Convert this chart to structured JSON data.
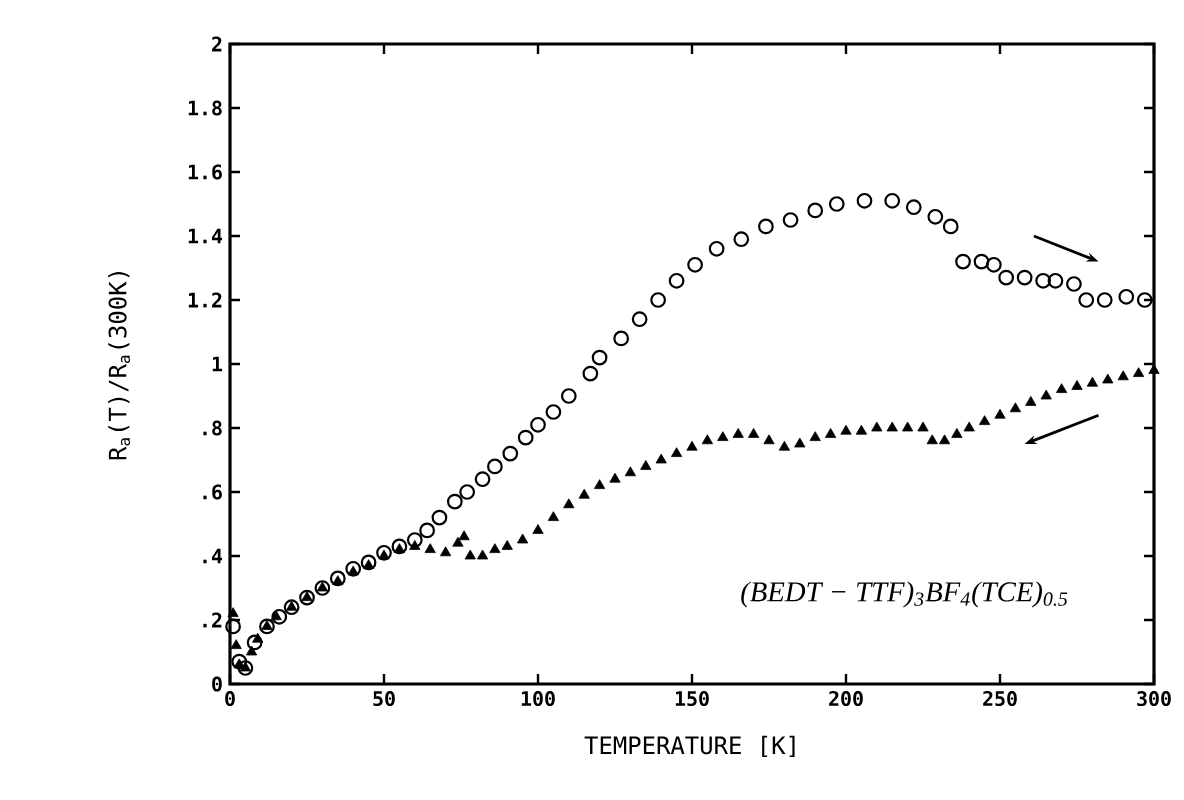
{
  "chart_data": {
    "type": "scatter",
    "xlabel": "TEMPERATURE [K]",
    "ylabel": "R$_{a}$(T)/R$_{a}$(300K)",
    "annotations": [
      "(BEDT − TTF)$_{3}$BF$_{4}$(TCE)$_{0.5}$"
    ],
    "xlim": [
      0,
      300
    ],
    "xticks": [
      0,
      50,
      100,
      150,
      200,
      250,
      300
    ],
    "ylim": [
      0,
      2
    ],
    "yticks": [
      0,
      {
        "value": 0.2,
        "label": ".2"
      },
      {
        "value": 0.4,
        "label": ".4"
      },
      {
        "value": 0.6,
        "label": ".6"
      },
      {
        "value": 0.8,
        "label": ".8"
      },
      1,
      1.2,
      1.4,
      1.6,
      1.8,
      2
    ],
    "grid": false,
    "series": [
      {
        "color": "#000000",
        "marker": "circle",
        "x": [
          1,
          3,
          5,
          8,
          12,
          16,
          20,
          25,
          30,
          35,
          40,
          45,
          50,
          55,
          60,
          64,
          68,
          73,
          77,
          82,
          86,
          91,
          96,
          100,
          105,
          110,
          117,
          120,
          127,
          133,
          139,
          145,
          151,
          158,
          166,
          174,
          182,
          190,
          197,
          206,
          215,
          222,
          229,
          234,
          238,
          244,
          248,
          252,
          258,
          264,
          268,
          274,
          278,
          284,
          291,
          297
        ],
        "values": [
          0.18,
          0.07,
          0.05,
          0.13,
          0.18,
          0.21,
          0.24,
          0.27,
          0.3,
          0.33,
          0.36,
          0.38,
          0.41,
          0.43,
          0.45,
          0.48,
          0.52,
          0.57,
          0.6,
          0.64,
          0.68,
          0.72,
          0.77,
          0.81,
          0.85,
          0.9,
          0.97,
          1.02,
          1.08,
          1.14,
          1.2,
          1.26,
          1.31,
          1.36,
          1.39,
          1.43,
          1.45,
          1.48,
          1.5,
          1.51,
          1.51,
          1.49,
          1.46,
          1.43,
          1.32,
          1.32,
          1.31,
          1.27,
          1.27,
          1.26,
          1.26,
          1.25,
          1.2,
          1.2,
          1.21,
          1.2
        ]
      },
      {
        "color": "#000000",
        "marker": "triangle",
        "x": [
          1,
          2,
          3,
          5,
          7,
          9,
          12,
          15,
          20,
          25,
          30,
          35,
          40,
          45,
          50,
          55,
          60,
          65,
          70,
          74,
          76,
          78,
          82,
          86,
          90,
          95,
          100,
          105,
          110,
          115,
          120,
          125,
          130,
          135,
          140,
          145,
          150,
          155,
          160,
          165,
          170,
          175,
          180,
          185,
          190,
          195,
          200,
          205,
          210,
          215,
          220,
          225,
          228,
          232,
          236,
          240,
          245,
          250,
          255,
          260,
          265,
          270,
          275,
          280,
          285,
          290,
          295,
          300
        ],
        "values": [
          0.22,
          0.12,
          0.06,
          0.05,
          0.1,
          0.14,
          0.18,
          0.21,
          0.24,
          0.27,
          0.3,
          0.32,
          0.35,
          0.37,
          0.4,
          0.42,
          0.43,
          0.42,
          0.41,
          0.44,
          0.46,
          0.4,
          0.4,
          0.42,
          0.43,
          0.45,
          0.48,
          0.52,
          0.56,
          0.59,
          0.62,
          0.64,
          0.66,
          0.68,
          0.7,
          0.72,
          0.74,
          0.76,
          0.77,
          0.78,
          0.78,
          0.76,
          0.74,
          0.75,
          0.77,
          0.78,
          0.79,
          0.79,
          0.8,
          0.8,
          0.8,
          0.8,
          0.76,
          0.76,
          0.78,
          0.8,
          0.82,
          0.84,
          0.86,
          0.88,
          0.9,
          0.92,
          0.93,
          0.94,
          0.95,
          0.96,
          0.97,
          0.98
        ]
      }
    ]
  }
}
